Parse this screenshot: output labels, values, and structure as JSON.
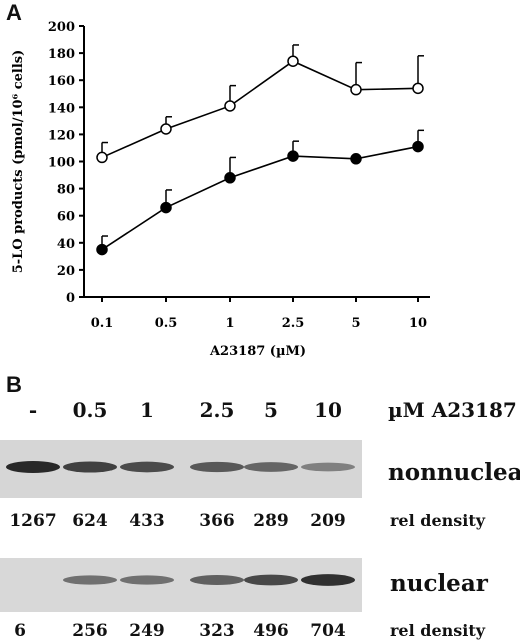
{
  "panel_a_letter": "A",
  "panel_b_letter": "B",
  "chart_data": {
    "type": "line",
    "categories": [
      "0.1",
      "0.5",
      "1",
      "2.5",
      "5",
      "10"
    ],
    "xlabel": "A23187 (µM)",
    "ylabel": "5-LO products (pmol/10⁶ cells)",
    "ylim": [
      0,
      200
    ],
    "yticks": [
      "0",
      "20",
      "40",
      "60",
      "80",
      "100",
      "120",
      "140",
      "160",
      "180",
      "200"
    ],
    "grid": false,
    "series": [
      {
        "marker": "open-circle",
        "values": [
          103,
          124,
          141,
          174,
          153,
          154
        ],
        "errors": [
          11,
          9,
          15,
          12,
          20,
          24
        ]
      },
      {
        "marker": "filled-circle",
        "values": [
          35,
          66,
          88,
          104,
          102,
          111
        ],
        "errors": [
          10,
          13,
          15,
          11,
          0,
          12
        ]
      }
    ]
  },
  "blot": {
    "lane_labels": [
      "-",
      "0.5",
      "1",
      "2.5",
      "5",
      "10"
    ],
    "concentration_label": "µM A23187",
    "rows": [
      {
        "name": "nonnuclear",
        "densities": [
          "1267",
          "624",
          "433",
          "366",
          "289",
          "209"
        ],
        "density_label": "rel density",
        "band_intensity": [
          1.0,
          0.85,
          0.78,
          0.7,
          0.62,
          0.45
        ]
      },
      {
        "name": "nuclear",
        "densities": [
          "6",
          "256",
          "249",
          "323",
          "496",
          "704"
        ],
        "density_label": "rel density",
        "band_intensity": [
          0.0,
          0.55,
          0.55,
          0.65,
          0.8,
          0.95
        ]
      }
    ]
  }
}
